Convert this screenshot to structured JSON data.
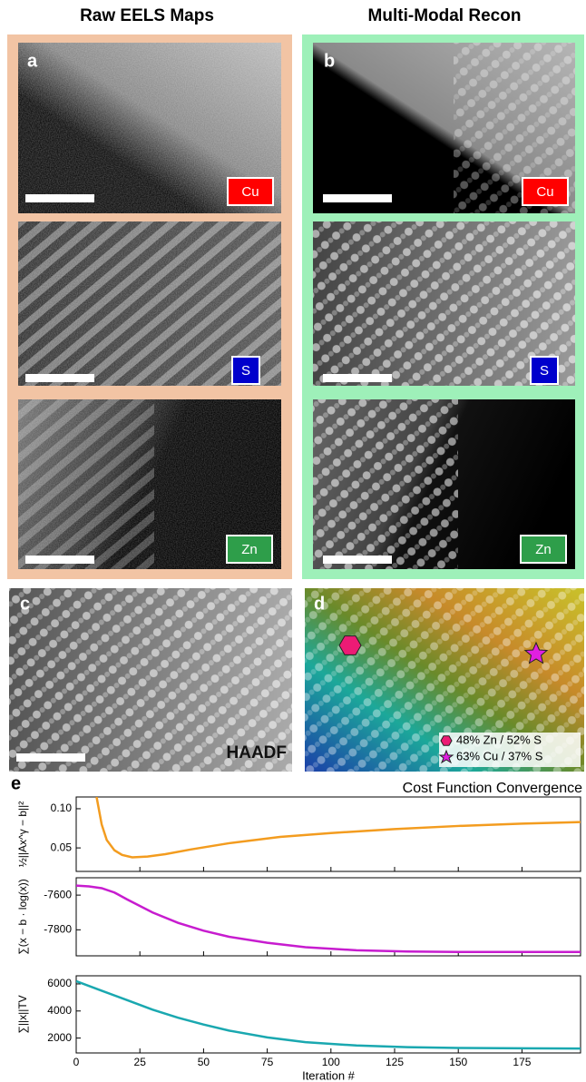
{
  "headers": {
    "left": "Raw EELS Maps",
    "right": "Multi-Modal Recon"
  },
  "panels": {
    "a": {
      "label": "a",
      "tags": [
        "Cu",
        "S",
        "Zn"
      ]
    },
    "b": {
      "label": "b",
      "tags": [
        "Cu",
        "S",
        "Zn"
      ]
    },
    "c": {
      "label": "c",
      "caption": "HAADF"
    },
    "d": {
      "label": "d",
      "legend": [
        "48% Zn / 52% S",
        "63% Cu / 37% S"
      ]
    },
    "e": {
      "label": "e",
      "title": "Cost Function Convergence"
    }
  },
  "chart_data": [
    {
      "type": "line",
      "ylabel": "½||Ax^γ − b||²",
      "color": "#f39c1f",
      "x": [
        8,
        10,
        12,
        15,
        18,
        22,
        28,
        35,
        45,
        60,
        80,
        100,
        125,
        150,
        175,
        198
      ],
      "values": [
        0.115,
        0.08,
        0.06,
        0.047,
        0.041,
        0.038,
        0.039,
        0.042,
        0.048,
        0.056,
        0.064,
        0.069,
        0.074,
        0.078,
        0.081,
        0.083
      ],
      "xlim": [
        0,
        198
      ],
      "xticks": [
        0,
        25,
        50,
        75,
        100,
        125,
        150,
        175
      ],
      "ylim": [
        0.02,
        0.115
      ],
      "yticks": [
        {
          "value": 0.05,
          "label": "0.05"
        },
        {
          "value": 0.1,
          "label": "0.10"
        }
      ]
    },
    {
      "type": "line",
      "ylabel": "∑(x − b · log(x))",
      "color": "#c71ccf",
      "x": [
        0,
        5,
        10,
        15,
        20,
        30,
        40,
        50,
        60,
        75,
        90,
        110,
        130,
        150,
        198
      ],
      "values": [
        -7545,
        -7550,
        -7560,
        -7585,
        -7625,
        -7700,
        -7760,
        -7805,
        -7840,
        -7875,
        -7900,
        -7918,
        -7925,
        -7928,
        -7928
      ],
      "xlim": [
        0,
        198
      ],
      "xticks": [
        0,
        25,
        50,
        75,
        100,
        125,
        150,
        175
      ],
      "ylim": [
        -7950,
        -7500
      ],
      "yticks": [
        -7800,
        -7600
      ]
    },
    {
      "type": "line",
      "ylabel": "∑||x||TV",
      "color": "#1aa8b0",
      "xlabel": "Iteration #",
      "x": [
        0,
        10,
        20,
        30,
        40,
        50,
        60,
        75,
        90,
        110,
        130,
        150,
        175,
        198
      ],
      "values": [
        6200,
        5500,
        4800,
        4100,
        3500,
        3000,
        2550,
        2050,
        1700,
        1450,
        1330,
        1270,
        1240,
        1230
      ],
      "xlim": [
        0,
        198
      ],
      "xticks": [
        0,
        25,
        50,
        75,
        100,
        125,
        150,
        175
      ],
      "ylim": [
        900,
        6600
      ],
      "yticks": [
        2000,
        4000,
        6000
      ]
    }
  ]
}
